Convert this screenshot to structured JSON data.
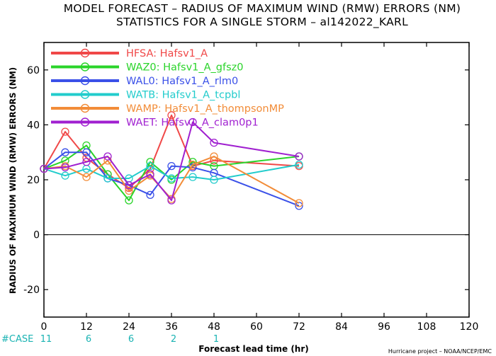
{
  "chart_data": {
    "type": "line",
    "title": "MODEL FORECAST – RADIUS OF MAXIMUM WIND (RMW) ERRORS (NM)",
    "subtitle": "STATISTICS FOR A SINGLE STORM – al142022_KARL",
    "xlabel": "Forecast lead time (hr)",
    "ylabel": "RADIUS OF MAXIMUM WIND (RMW) ERRORS (NM)",
    "xlim": [
      0,
      120
    ],
    "ylim": [
      -30,
      70
    ],
    "x_ticks": [
      0,
      12,
      24,
      36,
      48,
      60,
      72,
      84,
      96,
      108,
      120
    ],
    "y_ticks": [
      -20,
      0,
      20,
      40,
      60
    ],
    "legend_position": "top-left",
    "series": [
      {
        "name": "HFSA:  Hafsv1_A",
        "color": "#f04848",
        "x": [
          0,
          6,
          12,
          18,
          24,
          30,
          36,
          42,
          48,
          72
        ],
        "y": [
          24,
          37.5,
          28,
          22,
          17,
          24,
          43.5,
          25,
          27,
          25
        ]
      },
      {
        "name": "WAZ0:  Hafsv1_A_gfsz0",
        "color": "#2ad42a",
        "x": [
          0,
          6,
          12,
          18,
          24,
          30,
          36,
          42,
          48,
          72
        ],
        "y": [
          24,
          27,
          32.5,
          22,
          12.5,
          26.5,
          20,
          26.5,
          25,
          28.5
        ]
      },
      {
        "name": "WAL0:  Hafsv1_A_rlm0",
        "color": "#3a50e8",
        "x": [
          0,
          6,
          12,
          18,
          24,
          30,
          36,
          42,
          48,
          72
        ],
        "y": [
          24,
          30,
          30,
          20.5,
          18,
          14.5,
          25,
          24.5,
          22.5,
          10.5
        ]
      },
      {
        "name": "WATB:  Hafsv1_A_tcpbl",
        "color": "#22cccc",
        "x": [
          0,
          6,
          12,
          18,
          24,
          30,
          36,
          42,
          48,
          72
        ],
        "y": [
          24,
          21.5,
          24,
          20.5,
          20.5,
          25,
          20.5,
          21,
          20,
          25.5
        ]
      },
      {
        "name": "WAMP:  Hafsv1_A_thompsonMP",
        "color": "#f28c38",
        "x": [
          0,
          6,
          12,
          18,
          24,
          30,
          36,
          42,
          48,
          72
        ],
        "y": [
          24,
          25,
          21,
          27,
          16,
          21.5,
          13,
          25.5,
          28.5,
          11.5
        ]
      },
      {
        "name": "WAET:  Hafsv1_A_clam0p1",
        "color": "#a020d0",
        "x": [
          0,
          6,
          12,
          18,
          24,
          30,
          36,
          42,
          48,
          72
        ],
        "y": [
          24,
          24.5,
          26.5,
          28.5,
          18,
          22,
          12.5,
          41,
          33.5,
          28.5
        ]
      }
    ],
    "case_label": "#CASE",
    "cases": [
      {
        "x": 0,
        "n": "11"
      },
      {
        "x": 12,
        "n": "6"
      },
      {
        "x": 24,
        "n": "6"
      },
      {
        "x": 36,
        "n": "2"
      },
      {
        "x": 48,
        "n": "1"
      }
    ],
    "credit": "Hurricane project – NOAA/NCEP/EMC"
  }
}
